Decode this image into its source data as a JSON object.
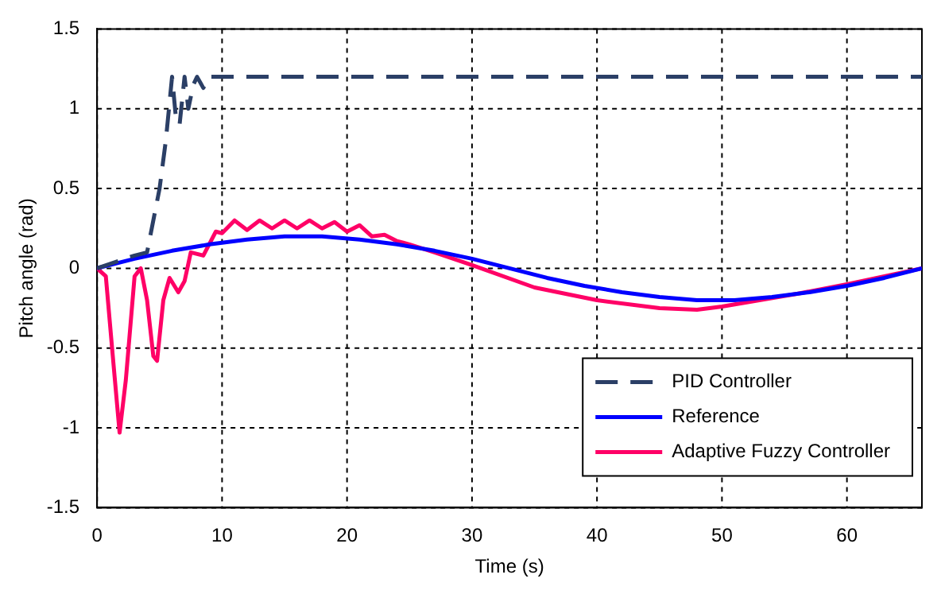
{
  "chart_data": {
    "type": "line",
    "xlabel": "Time (s)",
    "ylabel": "Pitch angle (rad)",
    "xlim": [
      0,
      66
    ],
    "ylim": [
      -1.5,
      1.5
    ],
    "xticks": [
      0,
      10,
      20,
      30,
      40,
      50,
      60
    ],
    "yticks": [
      -1.5,
      -1,
      -0.5,
      0,
      0.5,
      1,
      1.5
    ],
    "grid": true,
    "legend": "bottom right",
    "marker": "none",
    "series": [
      {
        "name": "PID Controller",
        "color": "#2b3f66",
        "line_style": "dashed",
        "x": [
          0,
          3,
          4,
          5,
          5.5,
          6,
          6.3,
          6.6,
          7,
          7.3,
          7.7,
          8,
          8.5,
          9,
          10,
          66
        ],
        "values": [
          0,
          0.08,
          0.1,
          0.5,
          0.8,
          1.2,
          0.95,
          0.9,
          1.2,
          1.0,
          1.15,
          1.2,
          1.13,
          1.2,
          1.2,
          1.2
        ]
      },
      {
        "name": "Reference",
        "color": "#0000ff",
        "line_style": "solid",
        "x": [
          0,
          3,
          6,
          9,
          12,
          15,
          18,
          21,
          24,
          27,
          30,
          33,
          36,
          39,
          42,
          45,
          48,
          51,
          54,
          57,
          60,
          63,
          66
        ],
        "values": [
          0,
          0.06,
          0.11,
          0.15,
          0.18,
          0.2,
          0.2,
          0.18,
          0.15,
          0.11,
          0.06,
          0,
          -0.06,
          -0.11,
          -0.15,
          -0.18,
          -0.2,
          -0.2,
          -0.18,
          -0.15,
          -0.11,
          -0.06,
          0
        ]
      },
      {
        "name": "Adaptive Fuzzy Controller",
        "color": "#ff0066",
        "line_style": "solid",
        "x": [
          0,
          0.7,
          1.2,
          1.8,
          2.3,
          3,
          3.5,
          4,
          4.5,
          4.8,
          5.3,
          5.8,
          6.5,
          7,
          7.5,
          8.5,
          9.5,
          10,
          11,
          12,
          13,
          14,
          15,
          16,
          17,
          18,
          19,
          20,
          21,
          22,
          23,
          24,
          25,
          27,
          30,
          35,
          40,
          45,
          48,
          50,
          53,
          56,
          60,
          63,
          66
        ],
        "values": [
          0,
          -0.05,
          -0.5,
          -1.03,
          -0.7,
          -0.05,
          0,
          -0.2,
          -0.55,
          -0.58,
          -0.2,
          -0.06,
          -0.15,
          -0.08,
          0.1,
          0.08,
          0.23,
          0.22,
          0.3,
          0.24,
          0.3,
          0.25,
          0.3,
          0.25,
          0.3,
          0.25,
          0.29,
          0.23,
          0.27,
          0.2,
          0.21,
          0.17,
          0.15,
          0.1,
          0.02,
          -0.12,
          -0.2,
          -0.25,
          -0.26,
          -0.24,
          -0.2,
          -0.16,
          -0.1,
          -0.05,
          0
        ]
      }
    ]
  }
}
